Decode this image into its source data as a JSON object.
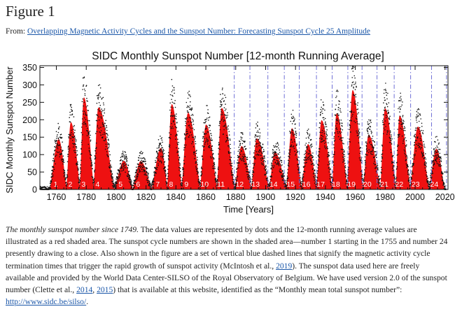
{
  "figure": {
    "title": "Figure 1",
    "from_label": "From:",
    "source_link": "Overlapping Magnetic Activity Cycles and the Sunspot Number: Forecasting Sunspot Cycle 25 Amplitude"
  },
  "caption": {
    "lead": "The monthly sunspot number since 1749.",
    "s1": " The data values are represented by dots and the 12-month running average values are illustrated as a red shaded area. The sunspot cycle numbers are shown in the shaded area—number 1 starting in the 1755 and number 24 presently drawing to a close. Also shown in the figure are a set of vertical blue dashed lines that signify the magnetic activity cycle termination times that trigger the rapid growth of sunspot activity (McIntosh et al., ",
    "y2019": "2019",
    "s2": "). The sunspot data used here are freely available and provided by the World Data Center-SILSO of the Royal Observatory of Belgium. We have used version 2.0 of the sunspot number (Clette et al., ",
    "y2014": "2014",
    "sep": ", ",
    "y2015": "2015",
    "s3": ") that is available at this website, identified as the “Monthly mean total sunspot number”: ",
    "url": "http://www.sidc.be/silso/",
    "end": "."
  },
  "chart_data": {
    "type": "area",
    "title": "SIDC Monthly Sunspot Number [12-month Running Average]",
    "xlabel": "Time [Years]",
    "ylabel": "SIDC Monthly Sunspot Number",
    "xlim": [
      1749,
      2022
    ],
    "ylim": [
      0,
      355
    ],
    "xticks": [
      1760,
      1780,
      1800,
      1820,
      1840,
      1860,
      1880,
      1900,
      1920,
      1940,
      1960,
      1980,
      2000,
      2020
    ],
    "yticks": [
      0,
      50,
      100,
      150,
      200,
      250,
      300,
      350
    ],
    "grid": false,
    "fill_color": "#ee1111",
    "dot_color": "#111111",
    "terminator_color": "#6f6fd6",
    "cycles": [
      {
        "label": "1",
        "start": 1755.2,
        "peak_year": 1761.5,
        "peak": 144.1
      },
      {
        "label": "2",
        "start": 1766.5,
        "peak_year": 1769.7,
        "peak": 193.0
      },
      {
        "label": "3",
        "start": 1775.5,
        "peak_year": 1778.4,
        "peak": 264.3
      },
      {
        "label": "4",
        "start": 1784.7,
        "peak_year": 1788.1,
        "peak": 235.3
      },
      {
        "label": "5",
        "start": 1798.3,
        "peak_year": 1805.2,
        "peak": 82.0
      },
      {
        "label": "6",
        "start": 1810.6,
        "peak_year": 1816.4,
        "peak": 81.2
      },
      {
        "label": "7",
        "start": 1823.3,
        "peak_year": 1829.9,
        "peak": 119.2
      },
      {
        "label": "8",
        "start": 1833.9,
        "peak_year": 1837.2,
        "peak": 244.9
      },
      {
        "label": "9",
        "start": 1843.5,
        "peak_year": 1848.1,
        "peak": 219.9
      },
      {
        "label": "10",
        "start": 1855.9,
        "peak_year": 1860.1,
        "peak": 186.2
      },
      {
        "label": "11",
        "start": 1867.2,
        "peak_year": 1870.6,
        "peak": 234.0
      },
      {
        "label": "12",
        "start": 1878.9,
        "peak_year": 1883.9,
        "peak": 124.4
      },
      {
        "label": "13",
        "start": 1890.2,
        "peak_year": 1894.1,
        "peak": 146.5
      },
      {
        "label": "14",
        "start": 1902.0,
        "peak_year": 1906.2,
        "peak": 107.1
      },
      {
        "label": "15",
        "start": 1913.6,
        "peak_year": 1917.6,
        "peak": 175.7
      },
      {
        "label": "16",
        "start": 1923.6,
        "peak_year": 1928.4,
        "peak": 130.2
      },
      {
        "label": "17",
        "start": 1933.8,
        "peak_year": 1937.4,
        "peak": 198.6
      },
      {
        "label": "18",
        "start": 1944.2,
        "peak_year": 1947.5,
        "peak": 218.7
      },
      {
        "label": "19",
        "start": 1954.3,
        "peak_year": 1958.2,
        "peak": 285.0
      },
      {
        "label": "20",
        "start": 1964.9,
        "peak_year": 1968.9,
        "peak": 156.6
      },
      {
        "label": "21",
        "start": 1976.5,
        "peak_year": 1979.9,
        "peak": 232.9
      },
      {
        "label": "22",
        "start": 1986.8,
        "peak_year": 1989.6,
        "peak": 212.5
      },
      {
        "label": "23",
        "start": 1996.4,
        "peak_year": 2001.9,
        "peak": 180.3
      },
      {
        "label": "24",
        "start": 2008.9,
        "peak_year": 2014.3,
        "peak": 116.4
      }
    ],
    "cycle_end": 2019.9,
    "terminators": [
      1879.0,
      1889.5,
      1901.5,
      1912.5,
      1922.5,
      1934.0,
      1944.5,
      1955.0,
      1964.5,
      1974.5,
      1986.0,
      1997.0,
      2011.0,
      2021.0
    ]
  }
}
